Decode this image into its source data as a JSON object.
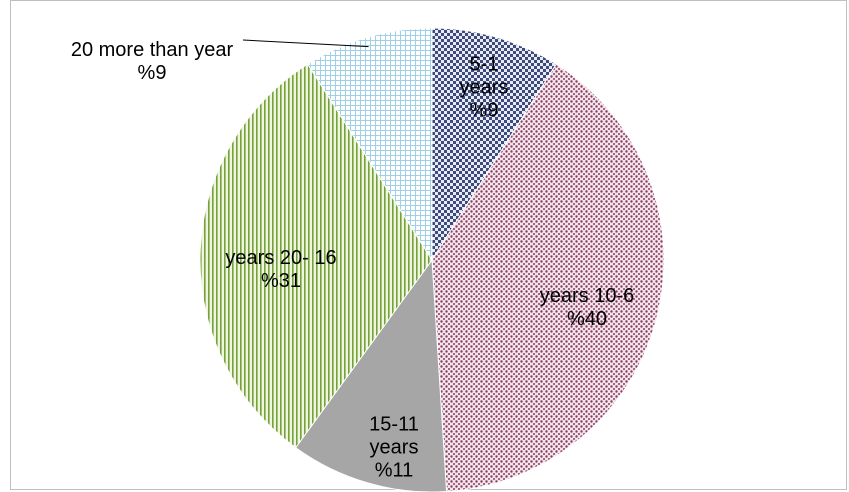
{
  "chart_data": {
    "type": "pie",
    "categories": [
      "5-1 years",
      "years 10-6",
      "15-11 years",
      "years 20- 16",
      "20 more than year"
    ],
    "values": [
      9,
      40,
      11,
      31,
      9
    ],
    "value_labels": [
      "%9",
      "%40",
      "%11",
      "%31",
      "%9"
    ],
    "colors": [
      "#3c4a7c",
      "#8a3a5e",
      "#a6a6a6",
      "#76a038",
      "#9fd0e8"
    ]
  }
}
